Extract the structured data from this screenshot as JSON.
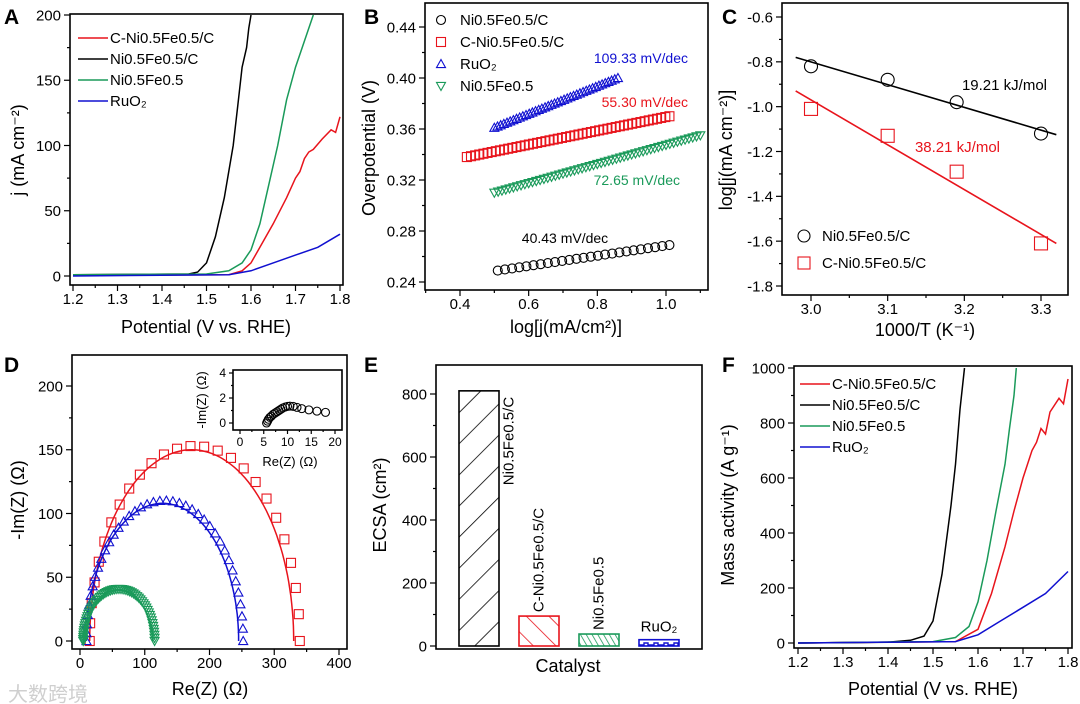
{
  "watermark": "大数跨境",
  "colors": {
    "black": "#000000",
    "red": "#e8141c",
    "green": "#1a9a5a",
    "blue": "#1010d0"
  },
  "chart_data": [
    {
      "panel": "A",
      "type": "line",
      "xlabel": "Potential (V vs. RHE)",
      "ylabel": "j (mA cm⁻²)",
      "xlim": [
        1.2,
        1.8
      ],
      "ylim": [
        0,
        200
      ],
      "xticks": [
        "1.2",
        "1.3",
        "1.4",
        "1.5",
        "1.6",
        "1.7",
        "1.8"
      ],
      "yticks": [
        "0",
        "50",
        "100",
        "150",
        "200"
      ],
      "legend_position": "top-left",
      "series": [
        {
          "name": "C-Ni0.5Fe0.5/C",
          "color": "red",
          "x": [
            1.2,
            1.55,
            1.58,
            1.6,
            1.62,
            1.65,
            1.68,
            1.7,
            1.71,
            1.72,
            1.73,
            1.74,
            1.76,
            1.78,
            1.79,
            1.8
          ],
          "y": [
            0.5,
            1,
            4,
            10,
            22,
            40,
            60,
            75,
            80,
            90,
            95,
            97,
            105,
            112,
            110,
            122
          ]
        },
        {
          "name": "Ni0.5Fe0.5/C",
          "color": "black",
          "x": [
            1.2,
            1.46,
            1.48,
            1.5,
            1.52,
            1.54,
            1.56,
            1.57,
            1.58,
            1.59,
            1.595,
            1.6
          ],
          "y": [
            1,
            1.5,
            3,
            10,
            30,
            60,
            100,
            130,
            160,
            175,
            190,
            200
          ]
        },
        {
          "name": "Ni0.5Fe0.5",
          "color": "green",
          "x": [
            1.2,
            1.5,
            1.55,
            1.58,
            1.6,
            1.62,
            1.64,
            1.66,
            1.68,
            1.7,
            1.72,
            1.74
          ],
          "y": [
            1,
            1.5,
            4,
            10,
            20,
            40,
            70,
            100,
            135,
            160,
            180,
            200
          ]
        },
        {
          "name": "RuO₂",
          "color": "blue",
          "x": [
            1.2,
            1.55,
            1.6,
            1.65,
            1.7,
            1.75,
            1.8
          ],
          "y": [
            0,
            1,
            4,
            10,
            16,
            22,
            32
          ]
        }
      ]
    },
    {
      "panel": "B",
      "type": "scatter",
      "xlabel": "log[j(mA/cm²)]",
      "ylabel": "Overpotential (V)",
      "xlim": [
        0.4,
        1.0
      ],
      "ylim": [
        0.24,
        0.44
      ],
      "xticks": [
        "0.4",
        "0.6",
        "0.8",
        "1.0"
      ],
      "yticks": [
        "0.24",
        "0.28",
        "0.32",
        "0.36",
        "0.40",
        "0.44"
      ],
      "legend_position": "top-left",
      "series": [
        {
          "name": "Ni0.5Fe0.5/C",
          "color": "black",
          "marker": "circle",
          "x_range": [
            0.51,
            1.01
          ],
          "y_range": [
            0.249,
            0.269
          ],
          "n": 25,
          "slope_label": "40.43 mV/dec"
        },
        {
          "name": "C-Ni0.5Fe0.5/C",
          "color": "red",
          "marker": "square",
          "x_range": [
            0.42,
            1.01
          ],
          "y_range": [
            0.338,
            0.37
          ],
          "n": 50,
          "slope_label": "55.30 mV/dec"
        },
        {
          "name": "RuO₂",
          "color": "blue",
          "marker": "triangle-up",
          "x_range": [
            0.5,
            0.86
          ],
          "y_range": [
            0.361,
            0.4
          ],
          "n": 40,
          "slope_label": "109.33 mV/dec"
        },
        {
          "name": "Ni0.5Fe0.5",
          "color": "green",
          "marker": "triangle-down",
          "x_range": [
            0.5,
            1.1
          ],
          "y_range": [
            0.31,
            0.355
          ],
          "n": 55,
          "slope_label": "72.65 mV/dec"
        }
      ]
    },
    {
      "panel": "C",
      "type": "scatter",
      "xlabel": "1000/T (K⁻¹)",
      "ylabel": "log[j(mA cm⁻²)]",
      "xlim": [
        3.0,
        3.3
      ],
      "ylim": [
        -1.8,
        -0.6
      ],
      "xticks": [
        "3.0",
        "3.1",
        "3.2",
        "3.3"
      ],
      "yticks": [
        "-1.8",
        "-1.6",
        "-1.4",
        "-1.2",
        "-1.0",
        "-0.8",
        "-0.6"
      ],
      "legend_position": "bottom-left",
      "series": [
        {
          "name": "Ni0.5Fe0.5/C",
          "color": "black",
          "marker": "circle",
          "x": [
            3.0,
            3.1,
            3.19,
            3.3
          ],
          "y": [
            -0.82,
            -0.88,
            -0.98,
            -1.12
          ],
          "fit_x": [
            2.98,
            3.32
          ],
          "fit_y": [
            -0.78,
            -1.125
          ],
          "energy_label": "19.21 kJ/mol"
        },
        {
          "name": "C-Ni0.5Fe0.5/C",
          "color": "red",
          "marker": "square",
          "x": [
            3.0,
            3.1,
            3.19,
            3.3
          ],
          "y": [
            -1.01,
            -1.13,
            -1.29,
            -1.61
          ],
          "fit_x": [
            2.98,
            3.32
          ],
          "fit_y": [
            -0.93,
            -1.61
          ],
          "energy_label": "38.21 kJ/mol"
        }
      ]
    },
    {
      "panel": "D",
      "type": "scatter",
      "xlabel": "Re(Z) (Ω)",
      "ylabel": "-Im(Z) (Ω)",
      "xlim": [
        0,
        400
      ],
      "ylim": [
        0,
        200
      ],
      "xticks": [
        "0",
        "100",
        "200",
        "300",
        "400"
      ],
      "yticks": [
        "0",
        "50",
        "100",
        "150",
        "200"
      ],
      "series": [
        {
          "name": "C-Ni0.5Fe0.5/C",
          "color": "red",
          "marker": "square",
          "start": 15,
          "end": 330,
          "peak": 150,
          "n": 26
        },
        {
          "name": "RuO₂",
          "color": "blue",
          "marker": "triangle-up",
          "start": 10,
          "end": 245,
          "peak": 108,
          "n": 40
        },
        {
          "name": "Ni0.5Fe0.5",
          "color": "green",
          "marker": "triangle-down",
          "start": 5,
          "end": 112,
          "peak": 40,
          "n": 60
        }
      ],
      "inset": {
        "xlabel": "Re(Z) (Ω)",
        "ylabel": "-Im(Z) (Ω)",
        "xlim": [
          0,
          20
        ],
        "ylim": [
          0,
          4
        ],
        "xticks": [
          "0",
          "5",
          "10",
          "15",
          "20"
        ],
        "yticks": [
          "0",
          "2",
          "4"
        ],
        "series": [
          {
            "name": "Ni0.5Fe0.5/C",
            "color": "black",
            "marker": "circle",
            "x": [
              5.6,
              5.8,
              6.0,
              6.3,
              6.6,
              7.0,
              7.4,
              7.8,
              8.2,
              8.6,
              9.0,
              9.5,
              10.0,
              10.5,
              11.2,
              12.0,
              13.0,
              14.5,
              16.2,
              18.0
            ],
            "y": [
              0.0,
              0.15,
              0.3,
              0.45,
              0.55,
              0.7,
              0.8,
              0.9,
              1.0,
              1.1,
              1.2,
              1.28,
              1.33,
              1.35,
              1.33,
              1.25,
              1.15,
              1.05,
              0.95,
              0.85
            ]
          }
        ]
      }
    },
    {
      "panel": "E",
      "type": "bar",
      "xlabel": "Catalyst",
      "ylabel": "ECSA (cm²)",
      "ylim": [
        0,
        800
      ],
      "yticks": [
        "0",
        "200",
        "400",
        "600",
        "800"
      ],
      "categories": [
        "Ni0.5Fe0.5/C",
        "C-Ni0.5Fe0.5/C",
        "Ni0.5Fe0.5",
        "RuO₂"
      ],
      "values": [
        810,
        95,
        38,
        20
      ],
      "bar_colors": [
        "black",
        "red",
        "green",
        "blue"
      ]
    },
    {
      "panel": "F",
      "type": "line",
      "xlabel": "Potential (V vs. RHE)",
      "ylabel": "Mass activity (A g⁻¹)",
      "xlim": [
        1.2,
        1.8
      ],
      "ylim": [
        0,
        1000
      ],
      "xticks": [
        "1.2",
        "1.3",
        "1.4",
        "1.5",
        "1.6",
        "1.7",
        "1.8"
      ],
      "yticks": [
        "0",
        "200",
        "400",
        "600",
        "800",
        "1000"
      ],
      "legend_position": "top-left",
      "series": [
        {
          "name": "C-Ni0.5Fe0.5/C",
          "color": "red",
          "x": [
            1.2,
            1.55,
            1.6,
            1.63,
            1.66,
            1.68,
            1.7,
            1.72,
            1.73,
            1.74,
            1.75,
            1.76,
            1.78,
            1.79,
            1.8
          ],
          "y": [
            0,
            5,
            50,
            180,
            350,
            480,
            600,
            700,
            730,
            780,
            760,
            840,
            890,
            870,
            960
          ]
        },
        {
          "name": "Ni0.5Fe0.5/C",
          "color": "black",
          "x": [
            1.2,
            1.4,
            1.45,
            1.48,
            1.5,
            1.52,
            1.54,
            1.55,
            1.56,
            1.57
          ],
          "y": [
            0,
            3,
            10,
            25,
            80,
            250,
            500,
            650,
            850,
            1000
          ]
        },
        {
          "name": "Ni0.5Fe0.5",
          "color": "green",
          "x": [
            1.2,
            1.5,
            1.55,
            1.58,
            1.6,
            1.62,
            1.64,
            1.66,
            1.67,
            1.68,
            1.685
          ],
          "y": [
            0,
            5,
            20,
            60,
            150,
            300,
            480,
            650,
            780,
            900,
            1000
          ]
        },
        {
          "name": "RuO₂",
          "color": "blue",
          "x": [
            1.2,
            1.55,
            1.6,
            1.65,
            1.7,
            1.75,
            1.8
          ],
          "y": [
            0,
            5,
            30,
            80,
            130,
            180,
            260
          ]
        }
      ]
    }
  ]
}
